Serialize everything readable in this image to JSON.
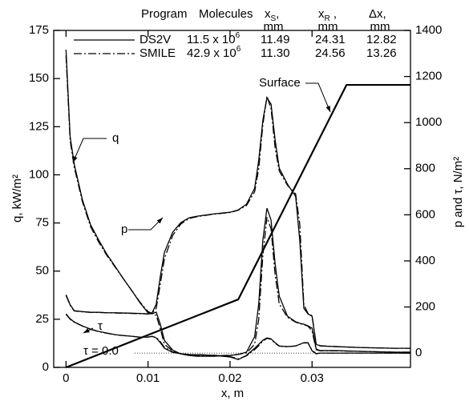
{
  "chart_data": {
    "type": "line",
    "x_label": "x, m",
    "y_label": "q, kW/m²",
    "y2_label": "p and τ, N/m²",
    "xlim": [
      -0.0015,
      0.042
    ],
    "xticks": [
      0,
      0.01,
      0.02,
      0.03
    ],
    "ylim": [
      0,
      175
    ],
    "yticks": [
      0,
      25,
      50,
      75,
      100,
      125,
      150,
      175
    ],
    "y2lim": [
      -62,
      1400
    ],
    "y2ticks": [
      0,
      200,
      400,
      600,
      800,
      1000,
      1200,
      1400
    ],
    "color": "#000000",
    "x": [
      0,
      0.0005,
      0.001,
      0.002,
      0.003,
      0.004,
      0.005,
      0.006,
      0.007,
      0.008,
      0.009,
      0.01,
      0.0105,
      0.011,
      0.0115,
      0.012,
      0.013,
      0.014,
      0.015,
      0.016,
      0.018,
      0.02,
      0.021,
      0.022,
      0.023,
      0.0235,
      0.024,
      0.0245,
      0.025,
      0.0255,
      0.026,
      0.027,
      0.028,
      0.0285,
      0.029,
      0.0295,
      0.03,
      0.0305,
      0.031,
      0.033,
      0.036,
      0.04,
      0.042
    ],
    "legend_header": [
      {
        "text": "Program"
      },
      {
        "text": "Molecules"
      },
      {
        "text": "x",
        "sub": "S",
        "after": ","
      },
      {
        "text": "x",
        "sub": "R",
        "after": " ,"
      },
      {
        "text": "Δx,"
      }
    ],
    "legend_units": [
      "mm",
      "mm",
      "mm"
    ],
    "programs": [
      {
        "name": "DS2V",
        "dash": "solid",
        "molecules": {
          "text": "11.5 x 10",
          "sup": "6"
        },
        "x_s": "11.49",
        "x_r": "24.31",
        "dx": "12.82",
        "curves": [
          {
            "axis": "y",
            "values": [
              165,
              120,
              105.6,
              87,
              74,
              66,
              58.6,
              52.4,
              46,
              40,
              33.7,
              28.3,
              27.8,
              28.7,
              22.4,
              14,
              9,
              7,
              6.2,
              5.8,
              5.8,
              6.2,
              6.7,
              7.9,
              16,
              33,
              66,
              82.7,
              76.5,
              53.6,
              37,
              26.6,
              23.7,
              22.9,
              22.4,
              21.6,
              20.4,
              9.6,
              8.7,
              8.7,
              8.3,
              7.9,
              7.9
            ]
          },
          {
            "axis": "y2",
            "values": [
              253,
              210,
              184,
              180,
              177,
              177,
              175,
              175,
              174,
              173,
              172,
              170,
              175,
              212,
              333,
              437,
              524,
              566,
              587,
              594,
              604,
              611,
              621,
              646,
              715,
              837,
              1010,
              1108,
              1080,
              924,
              802,
              733,
              680,
              490,
              194,
              170,
              160,
              38,
              31,
              28,
              24,
              21,
              21
            ]
          },
          {
            "axis": "y2",
            "values": [
              170,
              149,
              135,
              118,
              104,
              94,
              87,
              80,
              76,
              73,
              69,
              69,
              73,
              66,
              45,
              21,
              3,
              -3,
              -7,
              -7,
              -10,
              -17,
              -28,
              -10,
              21,
              38,
              56,
              66,
              62,
              45,
              31,
              28,
              31,
              38,
              45,
              45,
              10,
              -3,
              0,
              0,
              0,
              0,
              0
            ]
          }
        ]
      },
      {
        "name": "SMILE",
        "dash": "dashdot",
        "molecules": {
          "text": "42.9 x 10",
          "sup": "6"
        },
        "x_s": "11.30",
        "x_r": "24.56",
        "dx": "13.26",
        "curves": [
          {
            "axis": "y",
            "values": [
              162,
              118,
              104,
              86,
              73,
              65,
              58,
              52,
              46,
              40,
              34,
              29,
              28,
              27,
              20,
              12,
              8.5,
              7,
              6.3,
              6,
              6,
              6.3,
              6.8,
              7.5,
              12,
              25,
              58,
              78,
              72,
              48,
              33,
              26,
              23.5,
              22.8,
              22.2,
              21.4,
              19,
              9.2,
              8.6,
              8.6,
              8.3,
              7.9,
              7.9
            ]
          },
          {
            "axis": "y2",
            "values": [
              250,
              208,
              183,
              179,
              177,
              176,
              175,
              174,
              173,
              172,
              171,
              170,
              172,
              195,
              300,
              410,
              510,
              560,
              584,
              592,
              603,
              610,
              620,
              640,
              700,
              800,
              990,
              1115,
              1060,
              890,
              790,
              728,
              690,
              560,
              210,
              172,
              162,
              40,
              32,
              28,
              24,
              21,
              21
            ]
          },
          {
            "axis": "y2",
            "values": [
              168,
              147,
              134,
              117,
              103,
              93,
              86,
              80,
              76,
              73,
              69,
              70,
              72,
              68,
              50,
              25,
              5,
              -2,
              -6,
              -7,
              -9,
              -15,
              -25,
              -12,
              15,
              32,
              52,
              64,
              60,
              42,
              30,
              28,
              31,
              38,
              44,
              44,
              12,
              -2,
              0,
              0,
              0,
              0,
              0
            ]
          }
        ]
      }
    ],
    "surface": {
      "label": "Surface",
      "x": [
        0,
        0.021,
        0.0342,
        0.042
      ],
      "values": [
        0,
        35.3,
        146.7,
        146.7
      ]
    },
    "annotations": [
      "q",
      "p",
      "τ"
    ],
    "zero_line": {
      "label": "τ = 0.0",
      "value": 0
    }
  }
}
